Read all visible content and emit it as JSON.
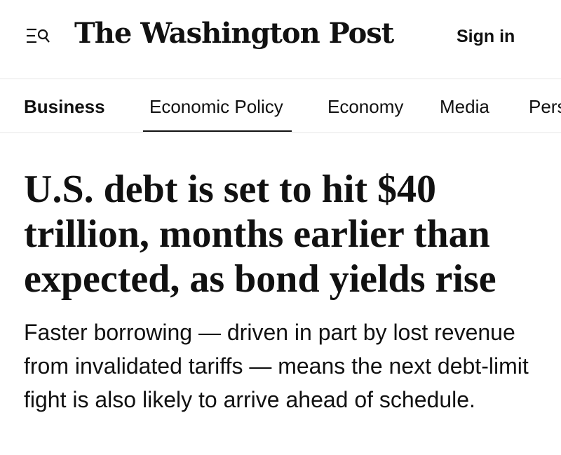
{
  "header": {
    "logo": "The Washington Post",
    "sign_in": "Sign in"
  },
  "nav": {
    "items": [
      "Business",
      "Economic Policy",
      "Economy",
      "Media",
      "Pers"
    ]
  },
  "article": {
    "headline": "U.S. debt is set to hit $40 trillion, months earlier than expected, as bond yields rise",
    "dek": "Faster borrowing — driven in part by lost revenue from invalidated tariffs — means the next debt-limit fight is also likely to arrive ahead of schedule."
  }
}
